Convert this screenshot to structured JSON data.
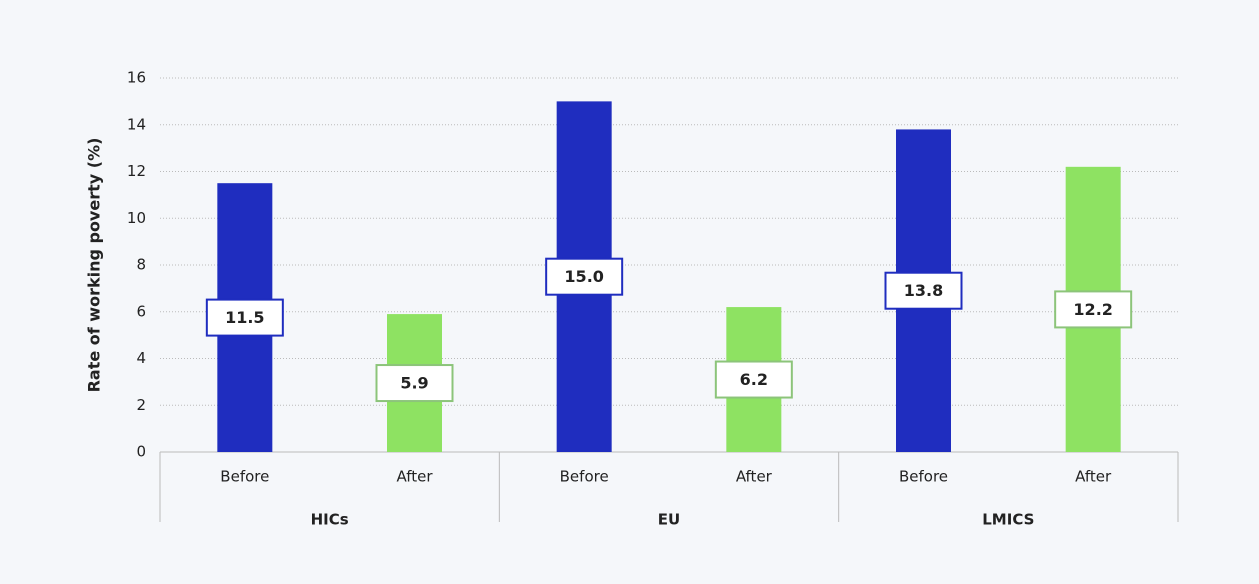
{
  "chart_data": {
    "type": "bar",
    "y_label": "Rate of working poverty (%)",
    "categories": [
      "Before",
      "After",
      "Before",
      "After",
      "Before",
      "After"
    ],
    "groups": [
      "HICs",
      "EU",
      "LMICS"
    ],
    "values": [
      11.5,
      5.9,
      15.0,
      6.2,
      13.8,
      12.2
    ],
    "value_labels": [
      "11.5",
      "5.9",
      "15.0",
      "6.2",
      "13.8",
      "12.2"
    ],
    "colors": [
      "#1f2dbf",
      "#8ee262",
      "#1f2dbf",
      "#8ee262",
      "#1f2dbf",
      "#8ee262"
    ],
    "ylim": [
      0,
      16
    ],
    "yticks": [
      0,
      2,
      4,
      6,
      8,
      10,
      12,
      14,
      16
    ],
    "grid": true
  }
}
